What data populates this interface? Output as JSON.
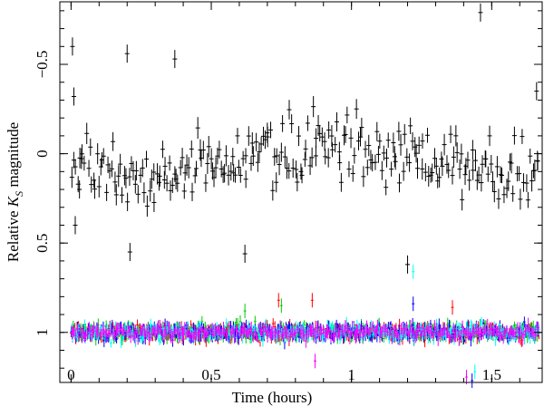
{
  "chart_data": {
    "type": "scatter",
    "title": "",
    "xlabel": "Time (hours)",
    "ylabel": "Relative K_S magnitude",
    "ylabel_parts": {
      "pre": "Relative ",
      "main": "K",
      "sub": "S",
      "post": " magnitude"
    },
    "xlim": [
      -0.04,
      1.68
    ],
    "ylim": [
      1.28,
      -0.85
    ],
    "y_inverted": true,
    "x_ticks": [
      0,
      0.5,
      1,
      1.5
    ],
    "x_tick_labels": [
      "0",
      "0.5",
      "1",
      "1.5"
    ],
    "y_ticks": [
      -0.5,
      0,
      0.5,
      1
    ],
    "y_tick_labels": [
      "−0.5",
      "0",
      "0.5",
      "1"
    ],
    "grid": false,
    "legend": "none",
    "error_bars": true,
    "series": [
      {
        "color": "#000000",
        "x_range": [
          0,
          1.67
        ],
        "mean": 0.03,
        "scatter": 0.2,
        "n_points": 260,
        "sample_points": [
          {
            "x": 0.005,
            "y": -0.6
          },
          {
            "x": 0.01,
            "y": -0.32
          },
          {
            "x": 0.015,
            "y": 0.4
          },
          {
            "x": 0.03,
            "y": 0.2
          },
          {
            "x": 0.21,
            "y": 0.55
          },
          {
            "x": 0.2,
            "y": -0.56
          },
          {
            "x": 0.37,
            "y": -0.53
          },
          {
            "x": 0.62,
            "y": 0.56
          },
          {
            "x": 1.2,
            "y": 0.62
          },
          {
            "x": 1.46,
            "y": -0.79
          },
          {
            "x": 1.66,
            "y": -0.35
          }
        ]
      },
      {
        "color": "#ff0000",
        "x_range": [
          0,
          1.67
        ],
        "mean": 1.0,
        "scatter": 0.04,
        "outliers": [
          {
            "x": 0.74,
            "y": 0.82
          },
          {
            "x": 0.86,
            "y": 0.82
          },
          {
            "x": 1.36,
            "y": 0.86
          }
        ]
      },
      {
        "color": "#00cc00",
        "x_range": [
          0,
          1.67
        ],
        "mean": 1.0,
        "scatter": 0.04,
        "outliers": [
          {
            "x": 0.75,
            "y": 0.85
          },
          {
            "x": 0.62,
            "y": 0.88
          }
        ]
      },
      {
        "color": "#0000ff",
        "x_range": [
          0,
          1.67
        ],
        "mean": 1.0,
        "scatter": 0.04,
        "outliers": [
          {
            "x": 1.22,
            "y": 0.84
          },
          {
            "x": 1.43,
            "y": 1.27
          }
        ]
      },
      {
        "color": "#00ffff",
        "x_range": [
          0,
          1.67
        ],
        "mean": 1.0,
        "scatter": 0.04,
        "outliers": [
          {
            "x": 1.22,
            "y": 0.66
          },
          {
            "x": 1.44,
            "y": 1.22
          }
        ]
      },
      {
        "color": "#ff00ff",
        "x_range": [
          0,
          1.67
        ],
        "mean": 1.0,
        "scatter": 0.035,
        "outliers": [
          {
            "x": 0.87,
            "y": 1.16
          },
          {
            "x": 1.41,
            "y": 1.25
          }
        ]
      }
    ]
  }
}
